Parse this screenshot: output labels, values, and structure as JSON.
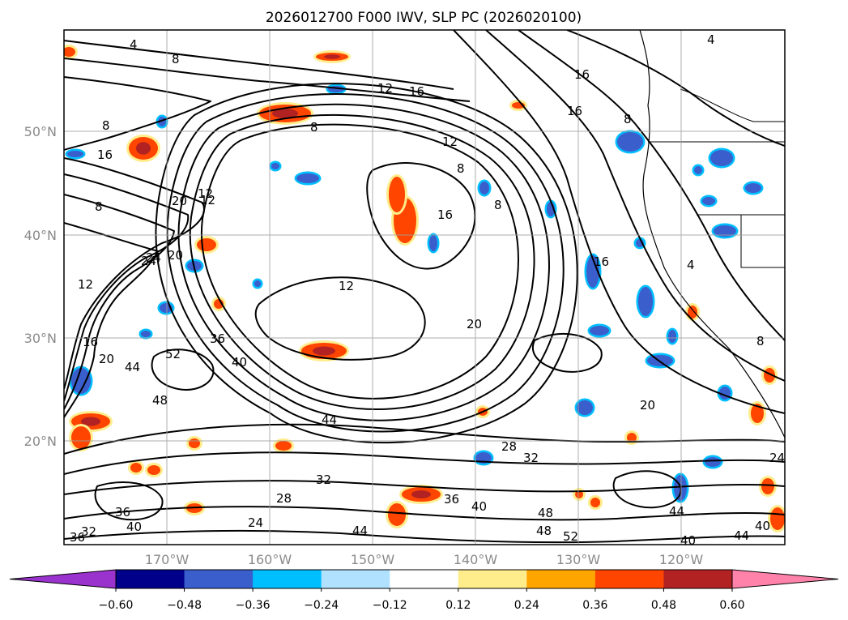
{
  "title": "2026012700 F000 IWV, SLP PC (2026020100)",
  "lon_labels": [
    "170°W",
    "160°W",
    "150°W",
    "140°W",
    "130°W",
    "120°W"
  ],
  "lat_labels": [
    "50°N",
    "40°N",
    "30°N",
    "20°N"
  ],
  "colorbar": {
    "ticks": [
      "-0.60",
      "-0.48",
      "-0.36",
      "-0.24",
      "-0.12",
      "0.12",
      "0.24",
      "0.36",
      "0.48",
      "0.60"
    ],
    "colors": [
      "#9a32cd",
      "#00008b",
      "#3a5fcd",
      "#00bfff",
      "#b0e2ff",
      "#ffffff",
      "#ffec8b",
      "#ffa500",
      "#ff4500",
      "#b22222",
      "#ff82ab"
    ]
  },
  "colors": {
    "contour": "#000000",
    "grid": "#a0a0a0",
    "neg_fill_dark": "#3a5fcd",
    "neg_fill_mid": "#00bfff",
    "pos_fill_mid": "#ffa500",
    "pos_fill_dark": "#ff4500",
    "pos_fill_max": "#b22222",
    "pos_fill_light": "#ffec8b"
  },
  "contour_labels": [
    {
      "text": "4"
    },
    {
      "text": "8"
    },
    {
      "text": "12"
    },
    {
      "text": "16"
    },
    {
      "text": "8"
    },
    {
      "text": "12"
    },
    {
      "text": "8"
    },
    {
      "text": "16"
    },
    {
      "text": "8"
    },
    {
      "text": "12"
    },
    {
      "text": "16"
    },
    {
      "text": "20"
    },
    {
      "text": "8"
    },
    {
      "text": "16"
    },
    {
      "text": "16"
    },
    {
      "text": "8"
    },
    {
      "text": "4"
    },
    {
      "text": "12"
    },
    {
      "text": "4"
    },
    {
      "text": "8"
    },
    {
      "text": "12"
    },
    {
      "text": "24"
    },
    {
      "text": "20"
    },
    {
      "text": "36"
    },
    {
      "text": "40"
    },
    {
      "text": "16"
    },
    {
      "text": "20"
    },
    {
      "text": "44"
    },
    {
      "text": "52"
    },
    {
      "text": "48"
    },
    {
      "text": "44"
    },
    {
      "text": "28"
    },
    {
      "text": "32"
    },
    {
      "text": "28"
    },
    {
      "text": "32"
    },
    {
      "text": "36"
    },
    {
      "text": "40"
    },
    {
      "text": "36"
    },
    {
      "text": "40"
    },
    {
      "text": "32"
    },
    {
      "text": "36"
    },
    {
      "text": "24"
    },
    {
      "text": "44"
    },
    {
      "text": "48"
    },
    {
      "text": "48"
    },
    {
      "text": "52"
    },
    {
      "text": "44"
    },
    {
      "text": "40"
    },
    {
      "text": "44"
    },
    {
      "text": "40"
    },
    {
      "text": "24"
    },
    {
      "text": "20"
    },
    {
      "text": "16"
    },
    {
      "text": "24"
    },
    {
      "text": "20"
    },
    {
      "text": "8"
    },
    {
      "text": "12"
    }
  ]
}
